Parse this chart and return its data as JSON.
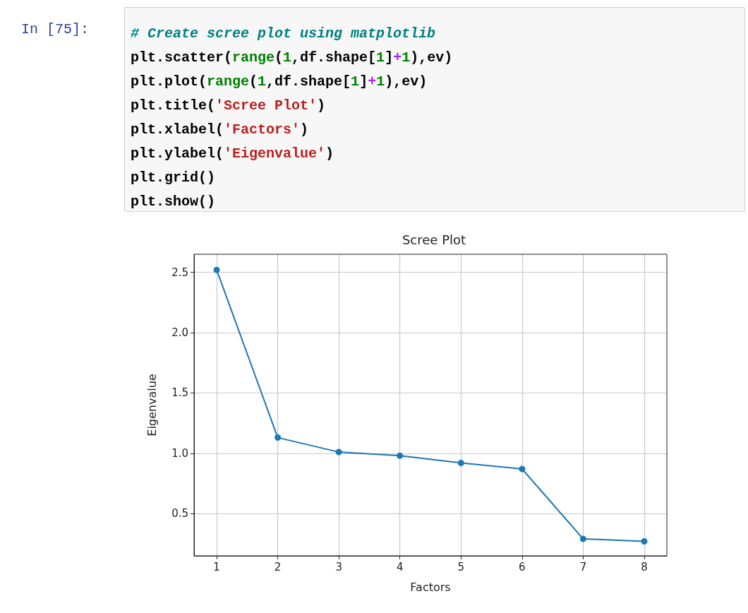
{
  "chart_data": {
    "type": "line",
    "title": "Scree Plot",
    "xlabel": "Factors",
    "ylabel": "Eigenvalue",
    "annotations": [
      "In [75]:",
      "# Create scree plot using matplotlib",
      "plt.scatter(range(1,df.shape[1]+1),ev)",
      "plt.plot(range(1,df.shape[1]+1),ev)",
      "plt.title('Scree Plot')",
      "plt.xlabel('Factors')",
      "plt.ylabel('Eigenvalue')",
      "plt.grid()",
      "plt.show()"
    ],
    "x": [
      1,
      2,
      3,
      4,
      5,
      6,
      7,
      8
    ],
    "series": [
      {
        "color": "#1f77b4",
        "values": [
          2.52,
          1.13,
          1.01,
          0.98,
          0.92,
          0.87,
          0.29,
          0.27
        ]
      }
    ],
    "xlim": [
      0.63,
      8.37
    ],
    "xticks": [
      1,
      2,
      3,
      4,
      5,
      6,
      7,
      8
    ],
    "ylim": [
      0.15,
      2.65
    ],
    "yticks": [
      0.5,
      {
        "value": 1,
        "label": "1.0"
      },
      1.5,
      {
        "value": 2,
        "label": "2.0"
      },
      2.5
    ],
    "grid": true,
    "marker": "circle",
    "line_style": "solid"
  }
}
